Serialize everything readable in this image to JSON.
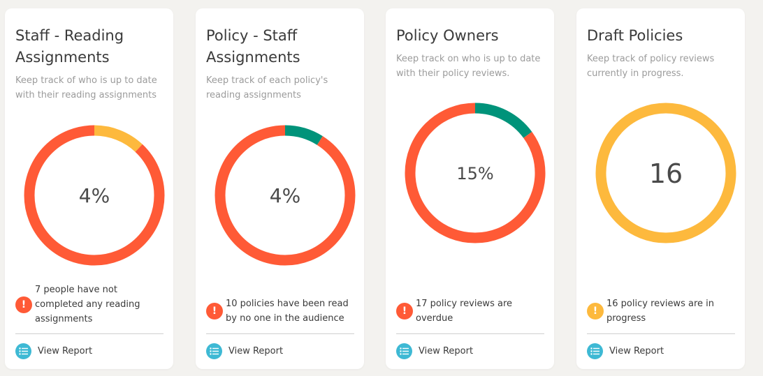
{
  "colors": {
    "red": "#ff5a36",
    "yellow": "#fdb93d",
    "green": "#00937a",
    "report_icon": "#3eb9d4"
  },
  "cards": [
    {
      "title": "Staff - Reading Assignments",
      "description": "Keep track of who is up to date with their reading assignments",
      "ring_label": "4%",
      "ring_segments": [
        {
          "color": "yellow",
          "fraction": 0.12
        },
        {
          "color": "red",
          "fraction": 0.88
        }
      ],
      "alert_text": "7 people have not completed any reading assignments",
      "alert_color": "red",
      "alert_icon": "exclamation-icon",
      "view_report": "View Report"
    },
    {
      "title": "Policy - Staff Assignments",
      "description": "Keep track of each policy's reading assignments",
      "ring_label": "4%",
      "ring_segments": [
        {
          "color": "green",
          "fraction": 0.09
        },
        {
          "color": "red",
          "fraction": 0.91
        }
      ],
      "alert_text": "10 policies have been read by no one in the audience",
      "alert_color": "red",
      "alert_icon": "exclamation-icon",
      "view_report": "View Report"
    },
    {
      "title": "Policy Owners",
      "description": "Keep track on who is up to date with their policy reviews.",
      "ring_label": "15%",
      "ring_segments": [
        {
          "color": "green",
          "fraction": 0.15
        },
        {
          "color": "red",
          "fraction": 0.85
        }
      ],
      "alert_text": "17 policy reviews are overdue",
      "alert_color": "red",
      "alert_icon": "exclamation-icon",
      "view_report": "View Report"
    },
    {
      "title": "Draft Policies",
      "description": "Keep track of policy reviews currently in progress.",
      "ring_label": "16",
      "ring_segments": [
        {
          "color": "yellow",
          "fraction": 1.0
        }
      ],
      "alert_text": "16 policy reviews are in progress",
      "alert_color": "yellow",
      "alert_icon": "exclamation-icon",
      "view_report": "View Report"
    }
  ]
}
